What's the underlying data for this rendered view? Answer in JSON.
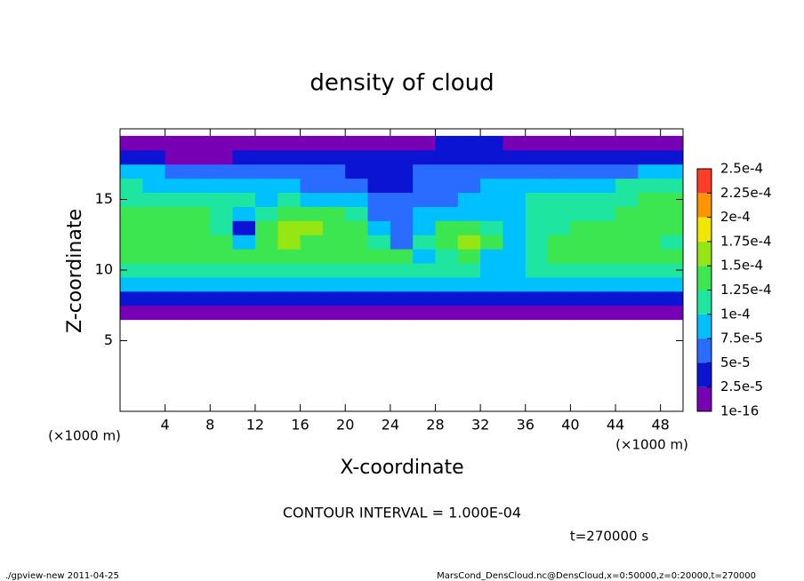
{
  "chart_data": {
    "type": "contourf",
    "title": "density of cloud",
    "x_label": "X-coordinate",
    "y_label": "Z-coordinate",
    "x_unit": "(×1000 m)",
    "contour_interval": "CONTOUR INTERVAL = 1.000E-04",
    "time": "t=270000 s",
    "footer_left": "./gpview-new   2011-04-25",
    "footer_right": "MarsCond_DensCloud.nc@DensCloud,x=0:50000,z=0:20000,t=270000",
    "xlim": [
      0,
      50
    ],
    "ylim": [
      0,
      20
    ],
    "xticks": [
      4,
      8,
      12,
      16,
      20,
      24,
      28,
      32,
      36,
      40,
      44,
      48
    ],
    "yticks": [
      5,
      10,
      15
    ],
    "x": [
      1,
      3,
      5,
      7,
      9,
      11,
      13,
      15,
      17,
      19,
      21,
      23,
      25,
      27,
      29,
      31,
      33,
      35,
      37,
      39,
      41,
      43,
      45,
      47,
      49
    ],
    "y": [
      7,
      8,
      9,
      10,
      11,
      12,
      13,
      14,
      15,
      16,
      17,
      18,
      19
    ],
    "z": [
      [
        1e-05,
        1e-05,
        1e-05,
        1e-05,
        1e-05,
        1e-05,
        1e-05,
        1e-05,
        1e-05,
        1e-05,
        1e-05,
        1e-05,
        1e-05,
        1e-05,
        1e-05,
        1e-05,
        1e-05,
        1e-05,
        1e-05,
        1e-05,
        1e-05,
        1e-05,
        1e-05,
        1e-05,
        1e-05
      ],
      [
        4e-05,
        4e-05,
        3e-05,
        3e-05,
        4e-05,
        4e-05,
        4e-05,
        4e-05,
        4e-05,
        4e-05,
        4e-05,
        4e-05,
        4e-05,
        4e-05,
        4e-05,
        4e-05,
        4e-05,
        4e-05,
        4e-05,
        4e-05,
        4e-05,
        4e-05,
        4e-05,
        4e-05,
        4e-05
      ],
      [
        8e-05,
        8e-05,
        8e-05,
        8e-05,
        8e-05,
        8e-05,
        9e-05,
        8e-05,
        8e-05,
        8e-05,
        8e-05,
        8e-05,
        8e-05,
        8e-05,
        8e-05,
        8e-05,
        8e-05,
        8e-05,
        8e-05,
        8e-05,
        8e-05,
        8e-05,
        8e-05,
        8e-05,
        8e-05
      ],
      [
        0.00012,
        0.00012,
        0.00012,
        0.00012,
        0.00012,
        0.00012,
        0.00012,
        0.00012,
        0.00012,
        0.00012,
        0.00012,
        0.00012,
        0.00012,
        0.00012,
        0.00012,
        0.00012,
        8e-05,
        8e-05,
        0.00011,
        0.00012,
        0.00012,
        0.00012,
        0.00012,
        0.00012,
        0.00012
      ],
      [
        0.00013,
        0.00013,
        0.00013,
        0.00013,
        0.00013,
        0.00013,
        0.00013,
        0.00013,
        0.00013,
        0.00013,
        0.00013,
        0.00013,
        0.00013,
        9e-05,
        0.00012,
        0.00013,
        8e-05,
        8e-05,
        0.00012,
        0.00013,
        0.00013,
        0.00013,
        0.00013,
        0.00013,
        0.00013
      ],
      [
        0.00013,
        0.00013,
        0.00013,
        0.00013,
        0.00013,
        9e-05,
        0.00014,
        0.00015,
        0.00014,
        0.00014,
        0.00013,
        0.00012,
        6e-05,
        0.0001,
        0.00013,
        0.00016,
        0.00013,
        9e-05,
        0.00012,
        0.00013,
        0.00013,
        0.00013,
        0.00013,
        0.00013,
        0.00012
      ],
      [
        0.00013,
        0.00014,
        0.00014,
        0.00013,
        0.00012,
        4e-05,
        0.00013,
        0.00017,
        0.00015,
        0.00014,
        0.00013,
        9e-05,
        5e-05,
        9e-05,
        0.00013,
        0.00013,
        0.00011,
        9e-05,
        0.00011,
        0.00012,
        0.00013,
        0.00013,
        0.00013,
        0.00013,
        0.00013
      ],
      [
        0.00013,
        0.00014,
        0.00014,
        0.00013,
        0.00012,
        8e-05,
        0.0001,
        0.00013,
        0.00014,
        0.00014,
        0.00012,
        6e-05,
        5e-05,
        8e-05,
        9e-05,
        9e-05,
        9e-05,
        9e-05,
        0.0001,
        0.00011,
        0.00012,
        0.00012,
        0.00013,
        0.00013,
        0.00013
      ],
      [
        0.00012,
        0.00012,
        0.00012,
        0.00012,
        0.00011,
        0.0001,
        9e-05,
        0.00011,
        9e-05,
        8e-05,
        8e-05,
        6e-05,
        6e-05,
        7e-05,
        7e-05,
        8e-05,
        8e-05,
        9e-05,
        0.0001,
        0.00011,
        0.00011,
        0.00012,
        0.00012,
        0.00013,
        0.00013
      ],
      [
        0.0001,
        9e-05,
        9e-05,
        9e-05,
        9e-05,
        8e-05,
        9e-05,
        8e-05,
        7e-05,
        6e-05,
        5e-05,
        4e-05,
        4e-05,
        6e-05,
        7e-05,
        7e-05,
        8e-05,
        9e-05,
        9e-05,
        9e-05,
        9e-05,
        9e-05,
        0.0001,
        0.00011,
        0.00011
      ],
      [
        8e-05,
        8e-05,
        7e-05,
        6e-05,
        6e-05,
        6e-05,
        7e-05,
        6e-05,
        5e-05,
        5e-05,
        4e-05,
        3e-05,
        3e-05,
        5e-05,
        7e-05,
        7e-05,
        7e-05,
        7e-05,
        7e-05,
        7e-05,
        7e-05,
        7e-05,
        7e-05,
        8e-05,
        8e-05
      ],
      [
        3e-05,
        3e-05,
        2e-05,
        2e-05,
        2e-05,
        3e-05,
        3e-05,
        4e-05,
        4e-05,
        4e-05,
        4e-05,
        3e-05,
        3e-05,
        4e-05,
        4e-05,
        4e-05,
        4e-05,
        4e-05,
        4e-05,
        3e-05,
        3e-05,
        3e-05,
        3e-05,
        3e-05,
        3e-05
      ],
      [
        1e-05,
        1e-05,
        1e-05,
        1e-05,
        1e-05,
        1e-05,
        1e-05,
        1e-05,
        1e-05,
        1e-05,
        1e-05,
        1e-05,
        1e-05,
        1e-05,
        3e-05,
        3e-05,
        3e-05,
        1e-05,
        1e-05,
        1e-05,
        1e-05,
        1e-05,
        1e-05,
        1e-05,
        1e-05
      ]
    ],
    "levels": [
      1e-16,
      {
        "value": 2.5e-05,
        "label": "2.5e-5"
      },
      {
        "value": 5e-05,
        "label": "5e-5"
      },
      {
        "value": 7.5e-05,
        "label": "7.5e-5"
      },
      {
        "value": 0.0001,
        "label": "1e-4"
      },
      {
        "value": 0.000125,
        "label": "1.25e-4"
      },
      {
        "value": 0.00015,
        "label": "1.5e-4"
      },
      {
        "value": 0.000175,
        "label": "1.75e-4"
      },
      {
        "value": 0.0002,
        "label": "2e-4"
      },
      {
        "value": 0.000225,
        "label": "2.25e-4"
      },
      {
        "value": 0.00025,
        "label": "2.5e-4"
      }
    ],
    "colors": [
      "#7800b4",
      "#0a14d2",
      "#2a6cff",
      "#00c0ff",
      "#1ee6a0",
      "#3ce650",
      "#96e614",
      "#f0e600",
      "#ff9600",
      "#ff3c28"
    ]
  }
}
